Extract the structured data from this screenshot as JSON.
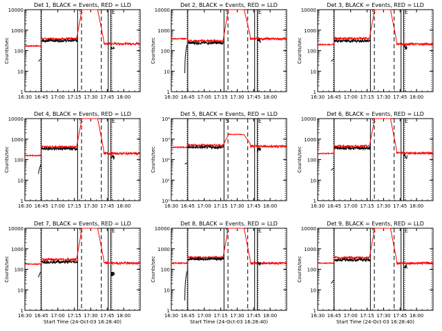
{
  "figure": {
    "background": "#ffffff",
    "axis_color": "#000000",
    "events_color": "#000000",
    "lld_color": "#ff0000"
  },
  "chart_data": {
    "type": "line",
    "x_tick_labels": [
      "16:30",
      "16:45",
      "17:00",
      "17:15",
      "17:30",
      "17:45",
      "18:00"
    ],
    "x_range_minutes": [
      16.5,
      18.25
    ],
    "y_scale": "log",
    "y_range": [
      1,
      10000
    ],
    "ylabel": "Counts/sec",
    "xlabel": "Start Time (24-Oct-03 16:28:40)",
    "y_ticks_standard": [
      "1",
      "10",
      "100",
      "1000",
      "10000"
    ],
    "y_ticks_power": [
      "10⁰",
      "10¹",
      "10²",
      "10³",
      "10⁴"
    ],
    "vertical_lines_solid": [
      16.75,
      17.3,
      17.765,
      17.805
    ],
    "vertical_lines_dashed": [
      17.36,
      17.66
    ],
    "vertical_lines_dotted": [
      16.74,
      17.82,
      18.23
    ],
    "flag_labels": [
      "S",
      "E"
    ],
    "panels": [
      {
        "title": "Det 1, BLACK = Events, RED = LLD",
        "y_tick_style": "standard",
        "series": [
          {
            "name": "Events",
            "baseline": 310,
            "lead": [
              30,
              40
            ],
            "post": 150
          },
          {
            "name": "LLD",
            "baseline": 380,
            "start": 170,
            "end": 220
          }
        ]
      },
      {
        "title": "Det 2, BLACK = Events, RED = LLD",
        "y_tick_style": "standard",
        "series": [
          {
            "name": "Events",
            "baseline": 240,
            "lead": [
              8,
              220
            ],
            "post": 300
          },
          {
            "name": "LLD",
            "baseline": 300,
            "start": 380,
            "end": 380
          }
        ]
      },
      {
        "title": "Det 3, BLACK = Events, RED = LLD",
        "y_tick_style": "standard",
        "series": [
          {
            "name": "Events",
            "baseline": 300,
            "lead": [
              30,
              40
            ],
            "post": 150
          },
          {
            "name": "LLD",
            "baseline": 400,
            "start": 200,
            "end": 210
          }
        ]
      },
      {
        "title": "Det 4, BLACK = Events, RED = LLD",
        "y_tick_style": "standard",
        "series": [
          {
            "name": "Events",
            "baseline": 340,
            "lead": [
              20,
              60
            ],
            "post": 130
          },
          {
            "name": "LLD",
            "baseline": 420,
            "start": 160,
            "end": 200
          }
        ]
      },
      {
        "title": "Det 5, BLACK = Events, RED = LLD",
        "y_tick_style": "power",
        "series": [
          {
            "name": "Events",
            "baseline": 400,
            "lead": [
              60,
              70
            ],
            "post": 320
          },
          {
            "name": "LLD",
            "baseline": 500,
            "start": 400,
            "end": 450,
            "peak": 1700
          }
        ]
      },
      {
        "title": "Det 6, BLACK = Events, RED = LLD",
        "y_tick_style": "standard",
        "series": [
          {
            "name": "Events",
            "baseline": 360,
            "lead": [
              30,
              40
            ],
            "post": 150
          },
          {
            "name": "LLD",
            "baseline": 450,
            "start": 200,
            "end": 210
          }
        ]
      },
      {
        "title": "Det 7, BLACK = Events, RED = LLD",
        "y_tick_style": "standard",
        "series": [
          {
            "name": "Events",
            "baseline": 230,
            "lead": [
              40,
              80
            ],
            "post": 60
          },
          {
            "name": "LLD",
            "baseline": 300,
            "start": 180,
            "end": 200
          }
        ]
      },
      {
        "title": "Det 8, BLACK = Events, RED = LLD",
        "y_tick_style": "standard",
        "series": [
          {
            "name": "Events",
            "baseline": 320,
            "lead": [
              3,
              90
            ],
            "post": 200
          },
          {
            "name": "LLD",
            "baseline": 380,
            "start": 200,
            "end": 200
          }
        ]
      },
      {
        "title": "Det 9, BLACK = Events, RED = LLD",
        "y_tick_style": "standard",
        "series": [
          {
            "name": "Events",
            "baseline": 290,
            "lead": [
              20,
              30
            ],
            "post": 140
          },
          {
            "name": "LLD",
            "baseline": 370,
            "start": 200,
            "end": 200
          }
        ]
      }
    ]
  }
}
